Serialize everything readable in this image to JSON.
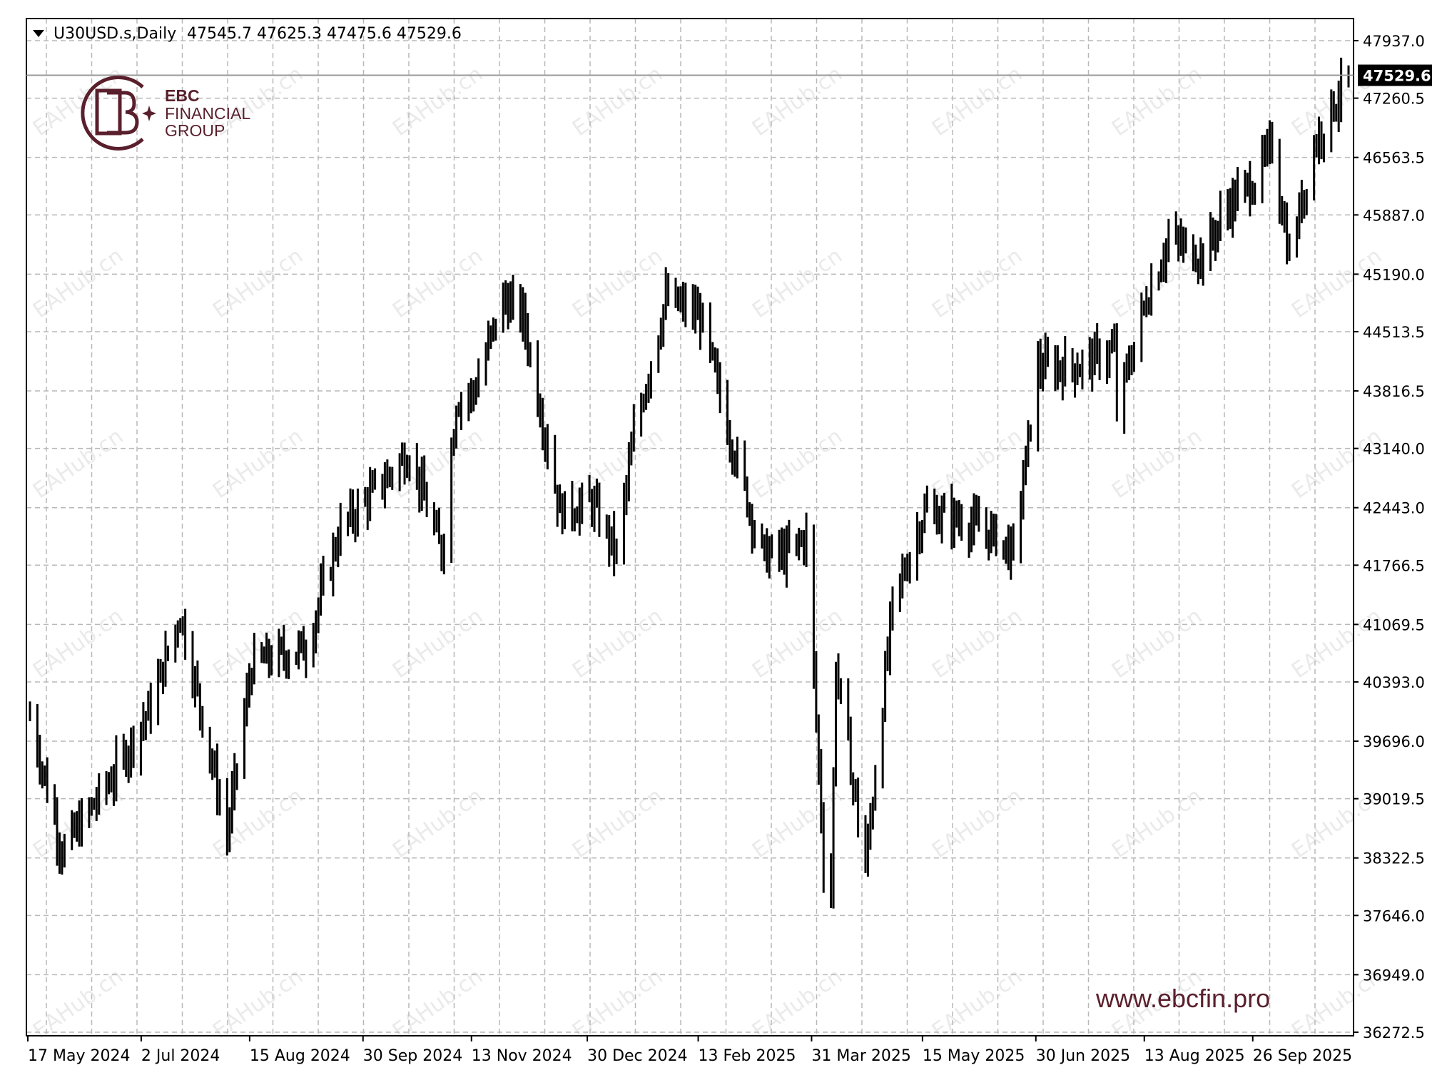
{
  "header": {
    "symbol": "U30USD.s,Daily",
    "ohlc": "47545.7 47625.3 47475.6 47529.6"
  },
  "current_price_label": "47529.6",
  "brand": {
    "line1": "EBC",
    "line2": "FINANCIAL",
    "line3": "GROUP",
    "url": "www.ebcfin.pro",
    "color": "#5a1f2c"
  },
  "watermark": "EAHub.cn",
  "chart_data": {
    "type": "ohlc",
    "title": "U30USD.s,Daily",
    "y_ticks": [
      47937.0,
      47260.5,
      46563.5,
      45887.0,
      45190.0,
      44513.5,
      43816.5,
      43140.0,
      42443.0,
      41766.5,
      41069.5,
      40393.0,
      39696.0,
      39019.5,
      38322.5,
      37646.0,
      36949.0,
      36272.5
    ],
    "y_tick_labels": [
      "47937.0",
      "47260.5",
      "46563.5",
      "45887.0",
      "45190.0",
      "44513.5",
      "43816.5",
      "43140.0",
      "42443.0",
      "41766.5",
      "41069.5",
      "40393.0",
      "39696.0",
      "39019.5",
      "38322.5",
      "37646.0",
      "36949.0",
      "36272.5"
    ],
    "ylim": [
      36200,
      48200
    ],
    "x_tick_labels": [
      "17 May 2024",
      "2 Jul 2024",
      "15 Aug 2024",
      "30 Sep 2024",
      "13 Nov 2024",
      "30 Dec 2024",
      "13 Feb 2025",
      "31 Mar 2025",
      "15 May 2025",
      "30 Jun 2025",
      "13 Aug 2025",
      "26 Sep 2025"
    ],
    "grid": true,
    "last_price": 47529.6,
    "key_points": [
      {
        "date": "2024-05-17",
        "close": 40000
      },
      {
        "date": "2024-05-30",
        "close": 38400
      },
      {
        "date": "2024-06-20",
        "close": 39300
      },
      {
        "date": "2024-07-05",
        "close": 40100
      },
      {
        "date": "2024-07-17",
        "close": 41200
      },
      {
        "date": "2024-08-05",
        "close": 38600
      },
      {
        "date": "2024-08-15",
        "close": 40600
      },
      {
        "date": "2024-09-06",
        "close": 40800
      },
      {
        "date": "2024-09-20",
        "close": 42200
      },
      {
        "date": "2024-10-18",
        "close": 43100
      },
      {
        "date": "2024-10-31",
        "close": 41900
      },
      {
        "date": "2024-11-06",
        "close": 43700
      },
      {
        "date": "2024-11-13",
        "close": 43800
      },
      {
        "date": "2024-11-25",
        "close": 44900
      },
      {
        "date": "2024-12-03",
        "close": 44700
      },
      {
        "date": "2024-12-18",
        "close": 42400
      },
      {
        "date": "2024-12-31",
        "close": 42500
      },
      {
        "date": "2025-01-10",
        "close": 41900
      },
      {
        "date": "2025-01-17",
        "close": 43300
      },
      {
        "date": "2025-01-30",
        "close": 44900
      },
      {
        "date": "2025-02-13",
        "close": 44700
      },
      {
        "date": "2025-02-24",
        "close": 43400
      },
      {
        "date": "2025-03-10",
        "close": 41900
      },
      {
        "date": "2025-03-20",
        "close": 41900
      },
      {
        "date": "2025-03-28",
        "close": 42100
      },
      {
        "date": "2025-04-04",
        "close": 38300
      },
      {
        "date": "2025-04-07",
        "close": 37900
      },
      {
        "date": "2025-04-09",
        "close": 40600
      },
      {
        "date": "2025-04-21",
        "close": 38200
      },
      {
        "date": "2025-05-02",
        "close": 41300
      },
      {
        "date": "2025-05-15",
        "close": 42400
      },
      {
        "date": "2025-05-30",
        "close": 42300
      },
      {
        "date": "2025-06-13",
        "close": 42100
      },
      {
        "date": "2025-06-20",
        "close": 41900
      },
      {
        "date": "2025-06-30",
        "close": 44100
      },
      {
        "date": "2025-07-15",
        "close": 44100
      },
      {
        "date": "2025-07-31",
        "close": 44300
      },
      {
        "date": "2025-08-01",
        "close": 43600
      },
      {
        "date": "2025-08-13",
        "close": 44900
      },
      {
        "date": "2025-08-22",
        "close": 45600
      },
      {
        "date": "2025-09-05",
        "close": 45400
      },
      {
        "date": "2025-09-15",
        "close": 46000
      },
      {
        "date": "2025-09-26",
        "close": 46300
      },
      {
        "date": "2025-10-03",
        "close": 46700
      },
      {
        "date": "2025-10-10",
        "close": 45400
      },
      {
        "date": "2025-10-20",
        "close": 46700
      },
      {
        "date": "2025-10-30",
        "close": 47300
      },
      {
        "date": "2025-11-03",
        "close": 47529.6
      }
    ]
  }
}
